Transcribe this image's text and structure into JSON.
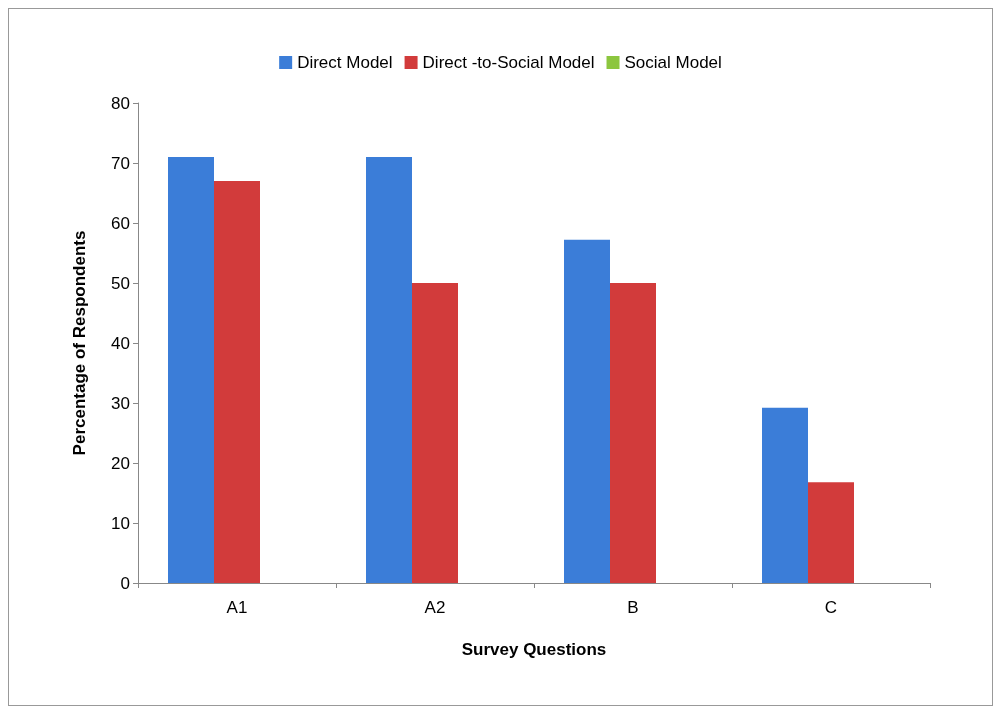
{
  "chart_data": {
    "type": "bar",
    "categories": [
      "A1",
      "A2",
      "B",
      "C"
    ],
    "series": [
      {
        "name": "Direct Model",
        "color": "#3b7dd8",
        "values": [
          71,
          71,
          57.2,
          29.2
        ]
      },
      {
        "name": "Direct -to-Social Model",
        "color": "#d23b3b",
        "values": [
          67,
          50,
          50,
          16.8
        ]
      },
      {
        "name": "Social Model",
        "color": "#8cc63f",
        "values": [
          0,
          0,
          0,
          0
        ]
      }
    ],
    "xlabel": "Survey Questions",
    "ylabel": "Percentage of Respondents",
    "ylim": [
      0,
      80
    ],
    "yticks": [
      0,
      10,
      20,
      30,
      40,
      50,
      60,
      70,
      80
    ],
    "grid": false,
    "legend": "top"
  }
}
